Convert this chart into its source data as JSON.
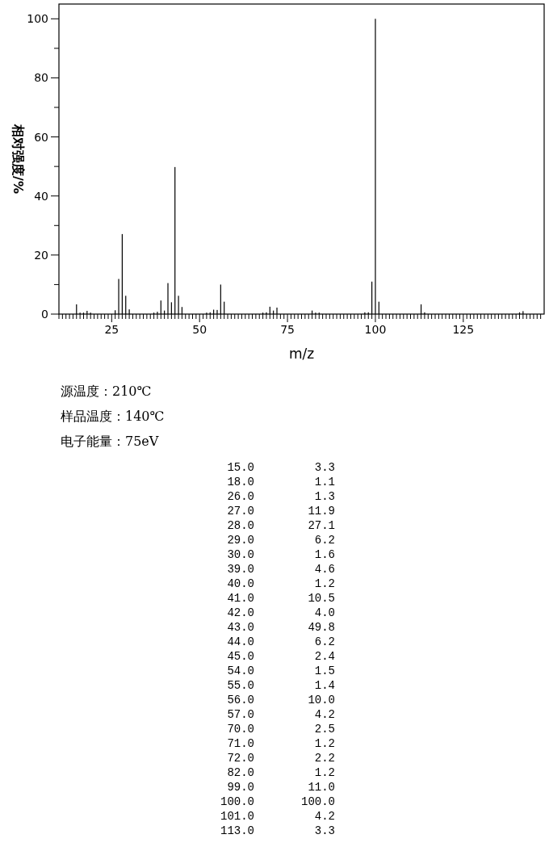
{
  "chart_data": [
    {
      "type": "bar",
      "xlabel": "m/z",
      "ylabel": "相对强度/%",
      "annotations": [
        "源温度：210℃",
        "样品温度：140℃",
        "电子能量：75eV"
      ],
      "xlim": [
        10,
        148
      ],
      "ylim": [
        0,
        105
      ],
      "xticks": [
        {
          "value": 10,
          "label": null
        },
        {
          "value": 11,
          "label": null
        },
        {
          "value": 12,
          "label": null
        },
        {
          "value": 13,
          "label": null
        },
        {
          "value": 14,
          "label": null
        },
        {
          "value": 15,
          "label": null
        },
        {
          "value": 16,
          "label": null
        },
        {
          "value": 17,
          "label": null
        },
        {
          "value": 18,
          "label": null
        },
        {
          "value": 19,
          "label": null
        },
        {
          "value": 20,
          "label": null
        },
        {
          "value": 21,
          "label": null
        },
        {
          "value": 22,
          "label": null
        },
        {
          "value": 23,
          "label": null
        },
        {
          "value": 24,
          "label": null
        },
        25,
        {
          "value": 26,
          "label": null
        },
        {
          "value": 27,
          "label": null
        },
        {
          "value": 28,
          "label": null
        },
        {
          "value": 29,
          "label": null
        },
        {
          "value": 30,
          "label": null
        },
        {
          "value": 31,
          "label": null
        },
        {
          "value": 32,
          "label": null
        },
        {
          "value": 33,
          "label": null
        },
        {
          "value": 34,
          "label": null
        },
        {
          "value": 35,
          "label": null
        },
        {
          "value": 36,
          "label": null
        },
        {
          "value": 37,
          "label": null
        },
        {
          "value": 38,
          "label": null
        },
        {
          "value": 39,
          "label": null
        },
        {
          "value": 40,
          "label": null
        },
        {
          "value": 41,
          "label": null
        },
        {
          "value": 42,
          "label": null
        },
        {
          "value": 43,
          "label": null
        },
        {
          "value": 44,
          "label": null
        },
        {
          "value": 45,
          "label": null
        },
        {
          "value": 46,
          "label": null
        },
        {
          "value": 47,
          "label": null
        },
        {
          "value": 48,
          "label": null
        },
        {
          "value": 49,
          "label": null
        },
        50,
        {
          "value": 51,
          "label": null
        },
        {
          "value": 52,
          "label": null
        },
        {
          "value": 53,
          "label": null
        },
        {
          "value": 54,
          "label": null
        },
        {
          "value": 55,
          "label": null
        },
        {
          "value": 56,
          "label": null
        },
        {
          "value": 57,
          "label": null
        },
        {
          "value": 58,
          "label": null
        },
        {
          "value": 59,
          "label": null
        },
        {
          "value": 60,
          "label": null
        },
        {
          "value": 61,
          "label": null
        },
        {
          "value": 62,
          "label": null
        },
        {
          "value": 63,
          "label": null
        },
        {
          "value": 64,
          "label": null
        },
        {
          "value": 65,
          "label": null
        },
        {
          "value": 66,
          "label": null
        },
        {
          "value": 67,
          "label": null
        },
        {
          "value": 68,
          "label": null
        },
        {
          "value": 69,
          "label": null
        },
        {
          "value": 70,
          "label": null
        },
        {
          "value": 71,
          "label": null
        },
        {
          "value": 72,
          "label": null
        },
        {
          "value": 73,
          "label": null
        },
        {
          "value": 74,
          "label": null
        },
        75,
        {
          "value": 76,
          "label": null
        },
        {
          "value": 77,
          "label": null
        },
        {
          "value": 78,
          "label": null
        },
        {
          "value": 79,
          "label": null
        },
        {
          "value": 80,
          "label": null
        },
        {
          "value": 81,
          "label": null
        },
        {
          "value": 82,
          "label": null
        },
        {
          "value": 83,
          "label": null
        },
        {
          "value": 84,
          "label": null
        },
        {
          "value": 85,
          "label": null
        },
        {
          "value": 86,
          "label": null
        },
        {
          "value": 87,
          "label": null
        },
        {
          "value": 88,
          "label": null
        },
        {
          "value": 89,
          "label": null
        },
        {
          "value": 90,
          "label": null
        },
        {
          "value": 91,
          "label": null
        },
        {
          "value": 92,
          "label": null
        },
        {
          "value": 93,
          "label": null
        },
        {
          "value": 94,
          "label": null
        },
        {
          "value": 95,
          "label": null
        },
        {
          "value": 96,
          "label": null
        },
        {
          "value": 97,
          "label": null
        },
        {
          "value": 98,
          "label": null
        },
        {
          "value": 99,
          "label": null
        },
        100,
        {
          "value": 101,
          "label": null
        },
        {
          "value": 102,
          "label": null
        },
        {
          "value": 103,
          "label": null
        },
        {
          "value": 104,
          "label": null
        },
        {
          "value": 105,
          "label": null
        },
        {
          "value": 106,
          "label": null
        },
        {
          "value": 107,
          "label": null
        },
        {
          "value": 108,
          "label": null
        },
        {
          "value": 109,
          "label": null
        },
        {
          "value": 110,
          "label": null
        },
        {
          "value": 111,
          "label": null
        },
        {
          "value": 112,
          "label": null
        },
        {
          "value": 113,
          "label": null
        },
        {
          "value": 114,
          "label": null
        },
        {
          "value": 115,
          "label": null
        },
        {
          "value": 116,
          "label": null
        },
        {
          "value": 117,
          "label": null
        },
        {
          "value": 118,
          "label": null
        },
        {
          "value": 119,
          "label": null
        },
        {
          "value": 120,
          "label": null
        },
        {
          "value": 121,
          "label": null
        },
        {
          "value": 122,
          "label": null
        },
        {
          "value": 123,
          "label": null
        },
        {
          "value": 124,
          "label": null
        },
        125,
        {
          "value": 126,
          "label": null
        },
        {
          "value": 127,
          "label": null
        },
        {
          "value": 128,
          "label": null
        },
        {
          "value": 129,
          "label": null
        },
        {
          "value": 130,
          "label": null
        },
        {
          "value": 131,
          "label": null
        },
        {
          "value": 132,
          "label": null
        },
        {
          "value": 133,
          "label": null
        },
        {
          "value": 134,
          "label": null
        },
        {
          "value": 135,
          "label": null
        },
        {
          "value": 136,
          "label": null
        },
        {
          "value": 137,
          "label": null
        },
        {
          "value": 138,
          "label": null
        },
        {
          "value": 139,
          "label": null
        },
        {
          "value": 140,
          "label": null
        },
        {
          "value": 141,
          "label": null
        },
        {
          "value": 142,
          "label": null
        },
        {
          "value": 143,
          "label": null
        },
        {
          "value": 144,
          "label": null
        },
        {
          "value": 145,
          "label": null
        },
        {
          "value": 146,
          "label": null
        },
        {
          "value": 147,
          "label": null
        }
      ],
      "yticks": [
        0,
        {
          "value": 10,
          "label": null
        },
        20,
        {
          "value": 30,
          "label": null
        },
        40,
        {
          "value": 50,
          "label": null
        },
        60,
        {
          "value": 70,
          "label": null
        },
        80,
        {
          "value": 90,
          "label": null
        },
        100
      ],
      "series": [
        {
          "color": "#000000",
          "x": [
            15,
            16,
            17,
            18,
            19,
            26,
            27,
            28,
            29,
            30,
            37,
            38,
            39,
            40,
            41,
            42,
            43,
            44,
            45,
            52,
            53,
            54,
            55,
            56,
            57,
            68,
            69,
            70,
            71,
            72,
            82,
            83,
            84,
            97,
            98,
            99,
            100,
            101,
            113,
            114,
            141,
            142
          ],
          "values": [
            3.3,
            0.5,
            0.5,
            1.1,
            0.5,
            1.3,
            11.9,
            27.1,
            6.2,
            1.6,
            0.5,
            0.8,
            4.6,
            1.2,
            10.5,
            4.0,
            49.8,
            6.2,
            2.4,
            0.5,
            0.6,
            1.5,
            1.4,
            10.0,
            4.2,
            0.5,
            0.6,
            2.5,
            1.2,
            2.2,
            1.2,
            0.5,
            0.5,
            0.6,
            0.6,
            11.0,
            100.0,
            4.2,
            3.3,
            0.6,
            0.6,
            1.0
          ]
        }
      ]
    },
    {
      "type": "other",
      "annotations": [
        "15.0",
        "3.3",
        "18.0",
        "1.1",
        "26.0",
        "1.3",
        "27.0",
        "11.9",
        "28.0",
        "27.1",
        "29.0",
        "6.2",
        "30.0",
        "1.6",
        "39.0",
        "4.6",
        "40.0",
        "1.2",
        "41.0",
        "10.5",
        "42.0",
        "4.0",
        "43.0",
        "49.8",
        "44.0",
        "6.2",
        "45.0",
        "2.4",
        "54.0",
        "1.5",
        "55.0",
        "1.4",
        "56.0",
        "10.0",
        "57.0",
        "4.2",
        "70.0",
        "2.5",
        "71.0",
        "1.2",
        "72.0",
        "2.2",
        "82.0",
        "1.2",
        "99.0",
        "11.0",
        "100.0",
        "100.0",
        "101.0",
        "4.2",
        "113.0",
        "3.3"
      ]
    }
  ]
}
